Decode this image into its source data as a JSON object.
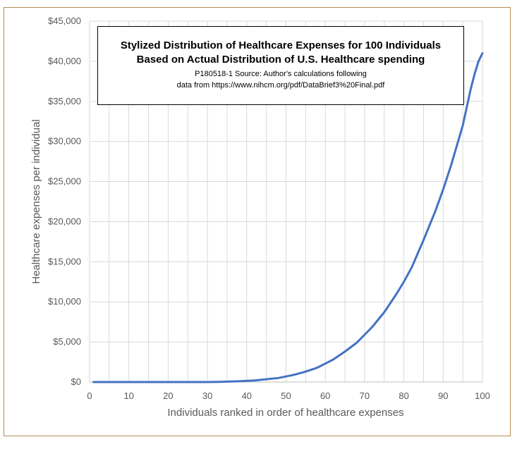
{
  "chart_data": {
    "type": "line",
    "title_line1": "Stylized Distribution  of Healthcare Expenses for 100 Individuals",
    "title_line2": "Based on Actual Distribution  of U.S. Healthcare spending",
    "note_line1": "P180518-1 Source: Author's calculations following",
    "note_line2": "data from https://www.nihcm.org/pdf/DataBrief3%20Final.pdf",
    "xlabel": "Individuals ranked in order of healthcare expenses",
    "ylabel": "Healthcare expenses per individual",
    "xlim": [
      0,
      100
    ],
    "ylim": [
      0,
      45000
    ],
    "xticks": [
      "0",
      "10",
      "20",
      "30",
      "40",
      "50",
      "60",
      "70",
      "80",
      "90",
      "100"
    ],
    "yticks": [
      "$0",
      "$5,000",
      "$10,000",
      "$15,000",
      "$20,000",
      "$25,000",
      "$30,000",
      "$35,000",
      "$40,000",
      "$45,000"
    ],
    "grid": true,
    "line_color": "#4472c4",
    "x": [
      1,
      5,
      10,
      15,
      20,
      25,
      30,
      33,
      35,
      38,
      40,
      42,
      45,
      48,
      50,
      52,
      55,
      58,
      60,
      62,
      65,
      68,
      70,
      72,
      75,
      78,
      80,
      82,
      85,
      88,
      90,
      92,
      95,
      97,
      98,
      99,
      100
    ],
    "y": [
      0,
      0,
      0,
      0,
      0,
      0,
      0,
      20,
      50,
      100,
      150,
      200,
      350,
      500,
      700,
      900,
      1300,
      1800,
      2300,
      2800,
      3800,
      4900,
      5900,
      6900,
      8700,
      10900,
      12500,
      14300,
      17700,
      21300,
      24000,
      27000,
      32000,
      36500,
      38400,
      40000,
      41000
    ]
  }
}
